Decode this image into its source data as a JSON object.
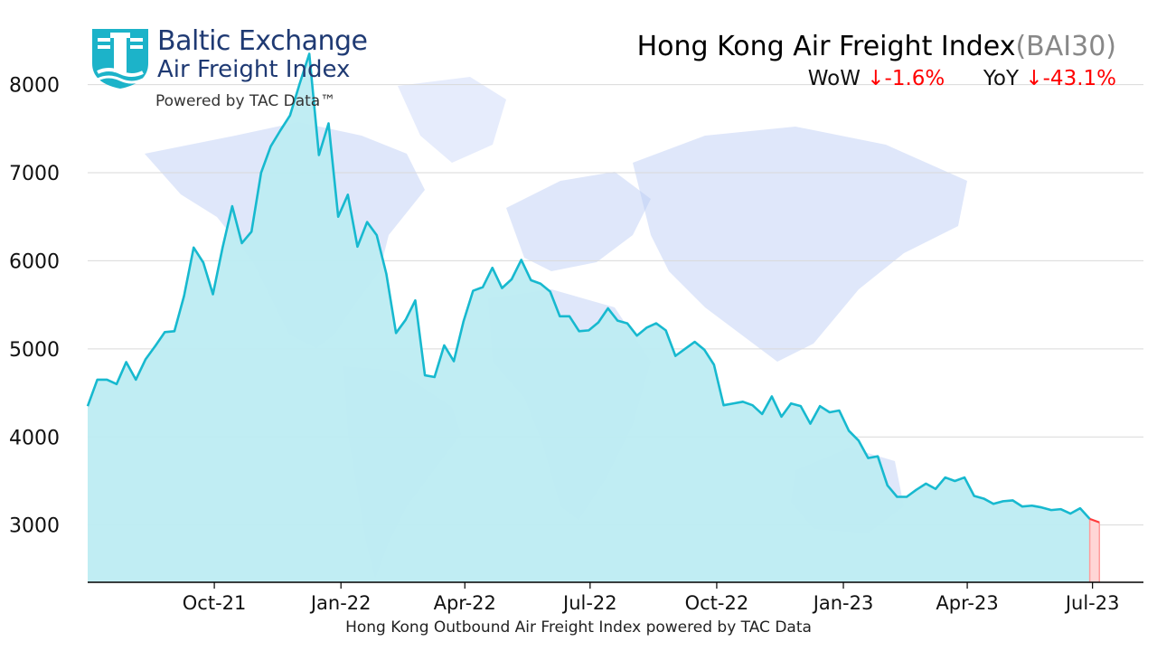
{
  "logo": {
    "line1": "Baltic Exchange",
    "line2": "Air Freight Index",
    "line3": "Powered by TAC Data™"
  },
  "header": {
    "title": "Hong Kong Air Freight Index",
    "code": "(BAI30)",
    "wow_label": "WoW",
    "wow_value": "↓-1.6%",
    "yoy_label": "YoY",
    "yoy_value": "↓-43.1%"
  },
  "caption": "Hong Kong Outbound Air Freight Index powered by TAC Data",
  "colors": {
    "line": "#17b9cf",
    "fill": "#bdecf2",
    "last_segment": "#ff3b3b",
    "last_fill": "#ffd6d6",
    "grid": "#d9d9d9",
    "map": "#b7c9f5"
  },
  "chart_data": {
    "type": "area",
    "x_start": "2021-07-01",
    "x_step_days": 7,
    "yticks": [
      3000,
      4000,
      5000,
      6000,
      7000,
      8000
    ],
    "ylim": [
      2350,
      8550
    ],
    "xticks": [
      {
        "label": "Oct-21",
        "date": "2021-10-01"
      },
      {
        "label": "Jan-22",
        "date": "2022-01-01"
      },
      {
        "label": "Apr-22",
        "date": "2022-04-01"
      },
      {
        "label": "Jul-22",
        "date": "2022-07-01"
      },
      {
        "label": "Oct-22",
        "date": "2022-10-01"
      },
      {
        "label": "Jan-23",
        "date": "2023-01-01"
      },
      {
        "label": "Apr-23",
        "date": "2023-04-01"
      },
      {
        "label": "Jul-23",
        "date": "2023-07-01"
      }
    ],
    "grid": true,
    "series": [
      {
        "values": [
          4350,
          4650,
          4650,
          4600,
          4850,
          4650,
          4880,
          5030,
          5190,
          5200,
          5600,
          6150,
          5980,
          5620,
          6150,
          6620,
          6200,
          6330,
          7000,
          7300,
          7480,
          7650,
          8010,
          8350,
          7200,
          7560,
          6500,
          6750,
          6160,
          6440,
          6290,
          5850,
          5180,
          5330,
          5550,
          4700,
          4680,
          5040,
          4860,
          5310,
          5660,
          5700,
          5920,
          5690,
          5790,
          6010,
          5780,
          5740,
          5650,
          5370,
          5370,
          5200,
          5210,
          5300,
          5460,
          5320,
          5290,
          5150,
          5240,
          5290,
          5210,
          4920,
          5000,
          5080,
          4990,
          4820,
          4360,
          4380,
          4400,
          4360,
          4260,
          4460,
          4230,
          4380,
          4350,
          4150,
          4350,
          4280,
          4300,
          4070,
          3960,
          3760,
          3780,
          3450,
          3320,
          3320,
          3400,
          3470,
          3410,
          3540,
          3500,
          3540,
          3330,
          3300,
          3240,
          3270,
          3280,
          3210,
          3220,
          3200,
          3170,
          3180,
          3130,
          3190,
          3070,
          3030
        ]
      }
    ]
  }
}
